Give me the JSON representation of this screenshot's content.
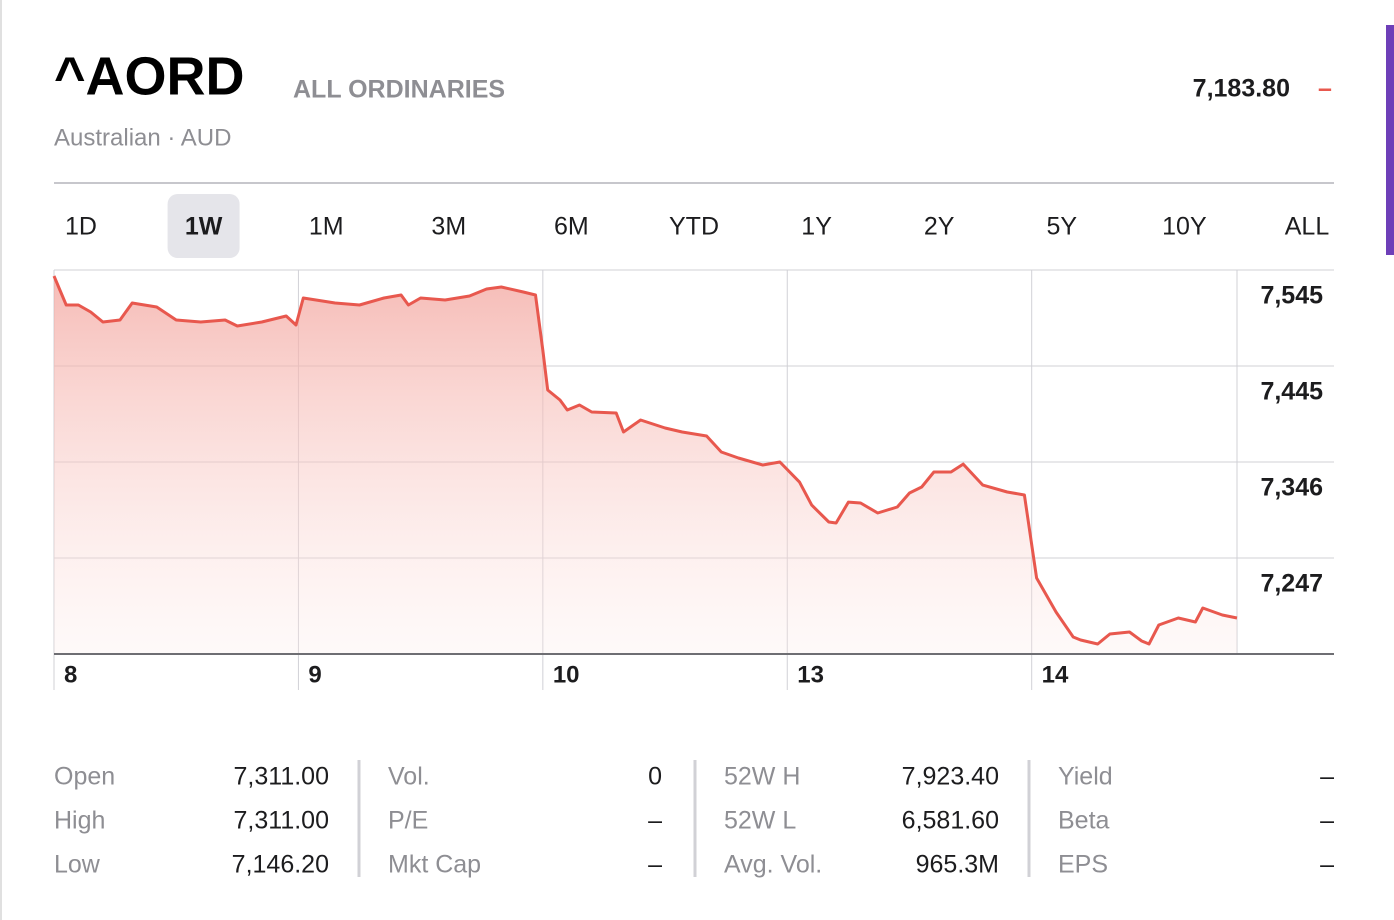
{
  "header": {
    "symbol": "^AORD",
    "name": "ALL ORDINARIES",
    "subtitle": "Australian · AUD",
    "price": "7,183.80",
    "change": "–"
  },
  "tabs": {
    "items": [
      "1D",
      "1W",
      "1M",
      "3M",
      "6M",
      "YTD",
      "1Y",
      "2Y",
      "5Y",
      "10Y",
      "ALL"
    ],
    "selected_index": 1
  },
  "chart_data": {
    "type": "line",
    "color": "#e8584e",
    "x": [
      0,
      0.05,
      0.1,
      0.15,
      0.2,
      0.27,
      0.32,
      0.42,
      0.5,
      0.6,
      0.7,
      0.75,
      0.85,
      0.95,
      0.99,
      1.02,
      1.15,
      1.25,
      1.35,
      1.42,
      1.45,
      1.5,
      1.6,
      1.7,
      1.77,
      1.83,
      1.92,
      1.97,
      2.0,
      2.02,
      2.07,
      2.1,
      2.15,
      2.2,
      2.3,
      2.33,
      2.4,
      2.5,
      2.57,
      2.67,
      2.73,
      2.8,
      2.9,
      2.97,
      3.05,
      3.1,
      3.17,
      3.2,
      3.25,
      3.3,
      3.37,
      3.45,
      3.5,
      3.55,
      3.6,
      3.67,
      3.72,
      3.8,
      3.9,
      3.97,
      4.02,
      4.1,
      4.17,
      4.2,
      4.27,
      4.32,
      4.4,
      4.45,
      4.48,
      4.52,
      4.6,
      4.67,
      4.7,
      4.78,
      4.84
    ],
    "values": [
      7538.8,
      7508.8,
      7508.8,
      7501.5,
      7491.2,
      7493.3,
      7510.9,
      7506.7,
      7493.3,
      7491.2,
      7493.3,
      7487.1,
      7491.2,
      7497.4,
      7488.1,
      7516.0,
      7510.9,
      7508.8,
      7516.0,
      7519.1,
      7508.8,
      7516.0,
      7514.0,
      7518.1,
      7525.3,
      7527.4,
      7522.2,
      7519.1,
      7462.2,
      7420.8,
      7410.5,
      7400.1,
      7405.3,
      7398.1,
      7397.0,
      7377.4,
      7389.8,
      7381.5,
      7377.4,
      7373.3,
      7356.7,
      7350.5,
      7343.2,
      7346.3,
      7325.6,
      7301.8,
      7284.3,
      7283.2,
      7304.9,
      7303.9,
      7293.6,
      7299.8,
      7314.3,
      7320.5,
      7336.0,
      7336.0,
      7344.2,
      7322.5,
      7315.3,
      7312.2,
      7226.3,
      7191.1,
      7165.3,
      7162.2,
      7158.0,
      7168.4,
      7170.5,
      7161.1,
      7158.0,
      7177.7,
      7184.9,
      7180.8,
      7195.3,
      7188.0,
      7184.9
    ],
    "xlim": [
      0,
      4.84
    ],
    "xticks": [
      {
        "value": 0,
        "label": "8"
      },
      {
        "value": 1,
        "label": "9"
      },
      {
        "value": 2,
        "label": "10"
      },
      {
        "value": 3,
        "label": "13"
      },
      {
        "value": 4,
        "label": "14"
      }
    ],
    "ylim": [
      7147.7,
      7545
    ],
    "yticks": [
      {
        "value": 7545,
        "label": "7,545"
      },
      {
        "value": 7445.7,
        "label": "7,445"
      },
      {
        "value": 7346.3,
        "label": "7,346"
      },
      {
        "value": 7247,
        "label": "7,247"
      }
    ],
    "grid": true
  },
  "stats": [
    [
      {
        "label": "Open",
        "value": "7,311.00"
      },
      {
        "label": "High",
        "value": "7,311.00"
      },
      {
        "label": "Low",
        "value": "7,146.20"
      }
    ],
    [
      {
        "label": "Vol.",
        "value": "0"
      },
      {
        "label": "P/E",
        "value": "–"
      },
      {
        "label": "Mkt Cap",
        "value": "–"
      }
    ],
    [
      {
        "label": "52W H",
        "value": "7,923.40"
      },
      {
        "label": "52W L",
        "value": "6,581.60"
      },
      {
        "label": "Avg. Vol.",
        "value": "965.3M"
      }
    ],
    [
      {
        "label": "Yield",
        "value": "–"
      },
      {
        "label": "Beta",
        "value": "–"
      },
      {
        "label": "EPS",
        "value": "–"
      }
    ]
  ]
}
